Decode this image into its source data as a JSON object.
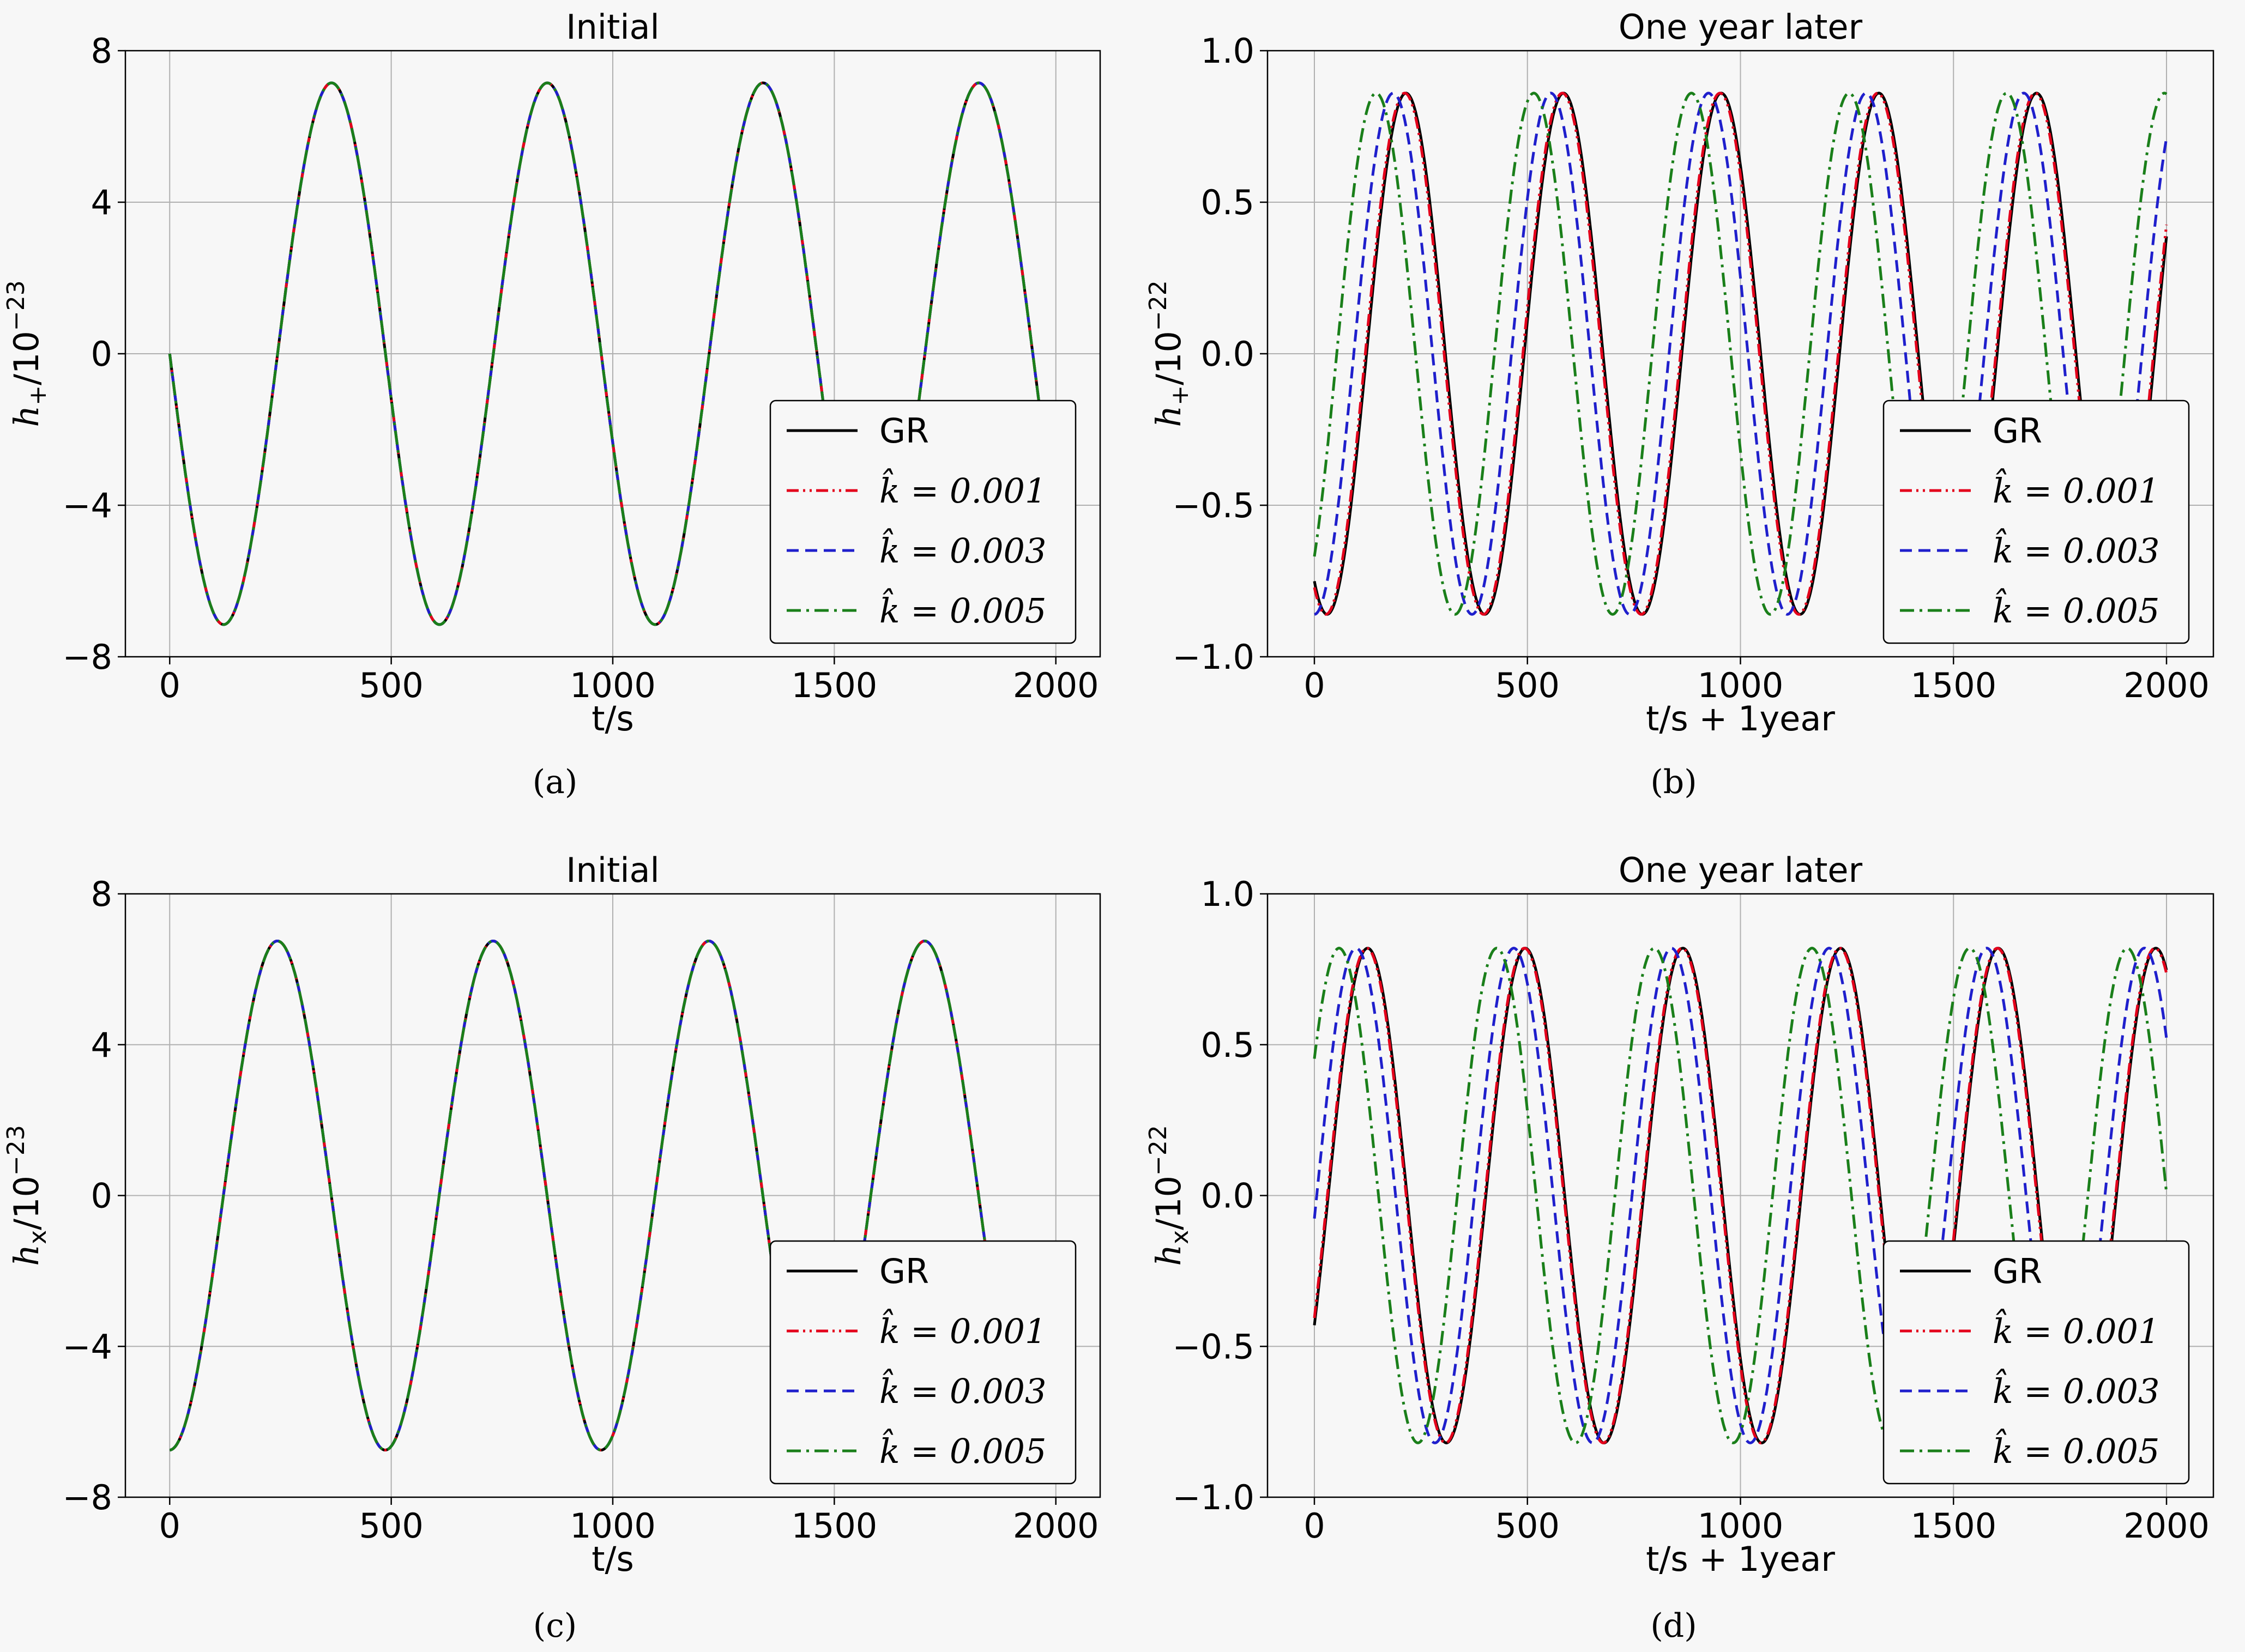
{
  "chart_data": [
    {
      "type": "line",
      "panel": "(a)",
      "title": "Initial",
      "xlabel": "t/s",
      "ylabel": "h+/10^-23",
      "ylabel_main": "h",
      "ylabel_sub": "+",
      "ylabel_den": "/10",
      "ylabel_exp": "−23",
      "xlim": [
        -100,
        2100
      ],
      "ylim": [
        -8,
        8
      ],
      "xticks": [
        0,
        500,
        1000,
        1500,
        2000
      ],
      "xtick_labels": [
        "0",
        "500",
        "1000",
        "1500",
        "2000"
      ],
      "yticks": [
        -8,
        -4,
        0,
        4,
        8
      ],
      "ytick_labels": [
        "−8",
        "−4",
        "0",
        "4",
        "8"
      ],
      "grid": true,
      "legend_location": "lower right",
      "legend": [
        "GR",
        "k̂ = 0.001",
        "k̂ = 0.003",
        "k̂ = 0.005"
      ],
      "series": [
        {
          "name": "GR",
          "color": "#000000",
          "style": "solid",
          "amplitude": 7.15,
          "period": 487,
          "phase_at_x0": 0,
          "form": "-sin",
          "x_range": [
            0,
            2000
          ]
        },
        {
          "name": "k̂ = 0.001",
          "color": "#e3001b",
          "style": "dashdotdot",
          "amplitude": 7.15,
          "period": 487,
          "phase_at_x0": 0,
          "form": "-sin",
          "x_range": [
            0,
            2000
          ]
        },
        {
          "name": "k̂ = 0.003",
          "color": "#1f1fcc",
          "style": "dashed",
          "amplitude": 7.15,
          "period": 487,
          "phase_at_x0": 0,
          "form": "-sin",
          "x_range": [
            0,
            2000
          ]
        },
        {
          "name": "k̂ = 0.005",
          "color": "#1a7f1a",
          "style": "dashdot",
          "amplitude": 7.15,
          "period": 487,
          "phase_at_x0": 0,
          "form": "-sin",
          "x_range": [
            0,
            2000
          ]
        }
      ]
    },
    {
      "type": "line",
      "panel": "(b)",
      "title": "One year later",
      "xlabel": "t/s + 1year",
      "ylabel": "h+/10^-22",
      "ylabel_main": "h",
      "ylabel_sub": "+",
      "ylabel_den": "/10",
      "ylabel_exp": "−22",
      "xlim": [
        -110,
        2110
      ],
      "ylim": [
        -1.0,
        1.0
      ],
      "xticks": [
        0,
        500,
        1000,
        1500,
        2000
      ],
      "xtick_labels": [
        "0",
        "500",
        "1000",
        "1500",
        "2000"
      ],
      "yticks": [
        -1.0,
        -0.5,
        0.0,
        0.5,
        1.0
      ],
      "ytick_labels": [
        "−1.0",
        "−0.5",
        "0.0",
        "0.5",
        "1.0"
      ],
      "grid": true,
      "legend_location": "lower right",
      "legend": [
        "GR",
        "k̂ = 0.001",
        "k̂ = 0.003",
        "k̂ = 0.005"
      ],
      "series": [
        {
          "name": "GR",
          "color": "#000000",
          "style": "solid",
          "amplitude": 0.86,
          "period": 370,
          "peak_at": 215,
          "x_range": [
            0,
            2000
          ]
        },
        {
          "name": "k̂ = 0.001",
          "color": "#e3001b",
          "style": "dashdotdot",
          "amplitude": 0.86,
          "period": 370,
          "peak_at": 212,
          "x_range": [
            0,
            2000
          ]
        },
        {
          "name": "k̂ = 0.003",
          "color": "#1f1fcc",
          "style": "dashed",
          "amplitude": 0.86,
          "period": 370,
          "peak_at": 185,
          "x_range": [
            0,
            2000
          ]
        },
        {
          "name": "k̂ = 0.005",
          "color": "#1a7f1a",
          "style": "dashdot",
          "amplitude": 0.86,
          "period": 370,
          "peak_at": 145,
          "x_range": [
            0,
            2000
          ]
        }
      ]
    },
    {
      "type": "line",
      "panel": "(c)",
      "title": "Initial",
      "xlabel": "t/s",
      "ylabel": "hx/10^-23",
      "ylabel_main": "h",
      "ylabel_sub": "x",
      "ylabel_den": "/10",
      "ylabel_exp": "−23",
      "xlim": [
        -100,
        2100
      ],
      "ylim": [
        -8,
        8
      ],
      "xticks": [
        0,
        500,
        1000,
        1500,
        2000
      ],
      "xtick_labels": [
        "0",
        "500",
        "1000",
        "1500",
        "2000"
      ],
      "yticks": [
        -8,
        -4,
        0,
        4,
        8
      ],
      "ytick_labels": [
        "−8",
        "−4",
        "0",
        "4",
        "8"
      ],
      "grid": true,
      "legend_location": "lower right",
      "legend": [
        "GR",
        "k̂ = 0.001",
        "k̂ = 0.003",
        "k̂ = 0.005"
      ],
      "series": [
        {
          "name": "GR",
          "color": "#000000",
          "style": "solid",
          "amplitude": 6.75,
          "period": 487,
          "peak_at": 243,
          "x_range": [
            0,
            1850
          ]
        },
        {
          "name": "k̂ = 0.001",
          "color": "#e3001b",
          "style": "dashdotdot",
          "amplitude": 6.75,
          "period": 487,
          "peak_at": 243,
          "x_range": [
            0,
            1850
          ]
        },
        {
          "name": "k̂ = 0.003",
          "color": "#1f1fcc",
          "style": "dashed",
          "amplitude": 6.75,
          "period": 487,
          "peak_at": 243,
          "x_range": [
            0,
            1850
          ]
        },
        {
          "name": "k̂ = 0.005",
          "color": "#1a7f1a",
          "style": "dashdot",
          "amplitude": 6.75,
          "period": 487,
          "peak_at": 243,
          "x_range": [
            0,
            1850
          ]
        }
      ]
    },
    {
      "type": "line",
      "panel": "(d)",
      "title": "One year later",
      "xlabel": "t/s + 1year",
      "ylabel": "hx/10^-22",
      "ylabel_main": "h",
      "ylabel_sub": "x",
      "ylabel_den": "/10",
      "ylabel_exp": "−22",
      "xlim": [
        -110,
        2110
      ],
      "ylim": [
        -1.0,
        1.0
      ],
      "xticks": [
        0,
        500,
        1000,
        1500,
        2000
      ],
      "xtick_labels": [
        "0",
        "500",
        "1000",
        "1500",
        "2000"
      ],
      "yticks": [
        -1.0,
        -0.5,
        0.0,
        0.5,
        1.0
      ],
      "ytick_labels": [
        "−1.0",
        "−0.5",
        "0.0",
        "0.5",
        "1.0"
      ],
      "grid": true,
      "legend_location": "lower right",
      "legend": [
        "GR",
        "k̂ = 0.001",
        "k̂ = 0.003",
        "k̂ = 0.005"
      ],
      "series": [
        {
          "name": "GR",
          "color": "#000000",
          "style": "solid",
          "amplitude": 0.82,
          "period": 370,
          "peak_at": 125,
          "x_range": [
            0,
            2000
          ]
        },
        {
          "name": "k̂ = 0.001",
          "color": "#e3001b",
          "style": "dashdotdot",
          "amplitude": 0.82,
          "period": 370,
          "peak_at": 123,
          "x_range": [
            0,
            2000
          ]
        },
        {
          "name": "k̂ = 0.003",
          "color": "#1f1fcc",
          "style": "dashed",
          "amplitude": 0.82,
          "period": 370,
          "peak_at": 98,
          "x_range": [
            0,
            2000
          ]
        },
        {
          "name": "k̂ = 0.005",
          "color": "#1a7f1a",
          "style": "dashdot",
          "amplitude": 0.82,
          "period": 370,
          "peak_at": 58,
          "x_range": [
            0,
            2000
          ]
        }
      ]
    }
  ]
}
